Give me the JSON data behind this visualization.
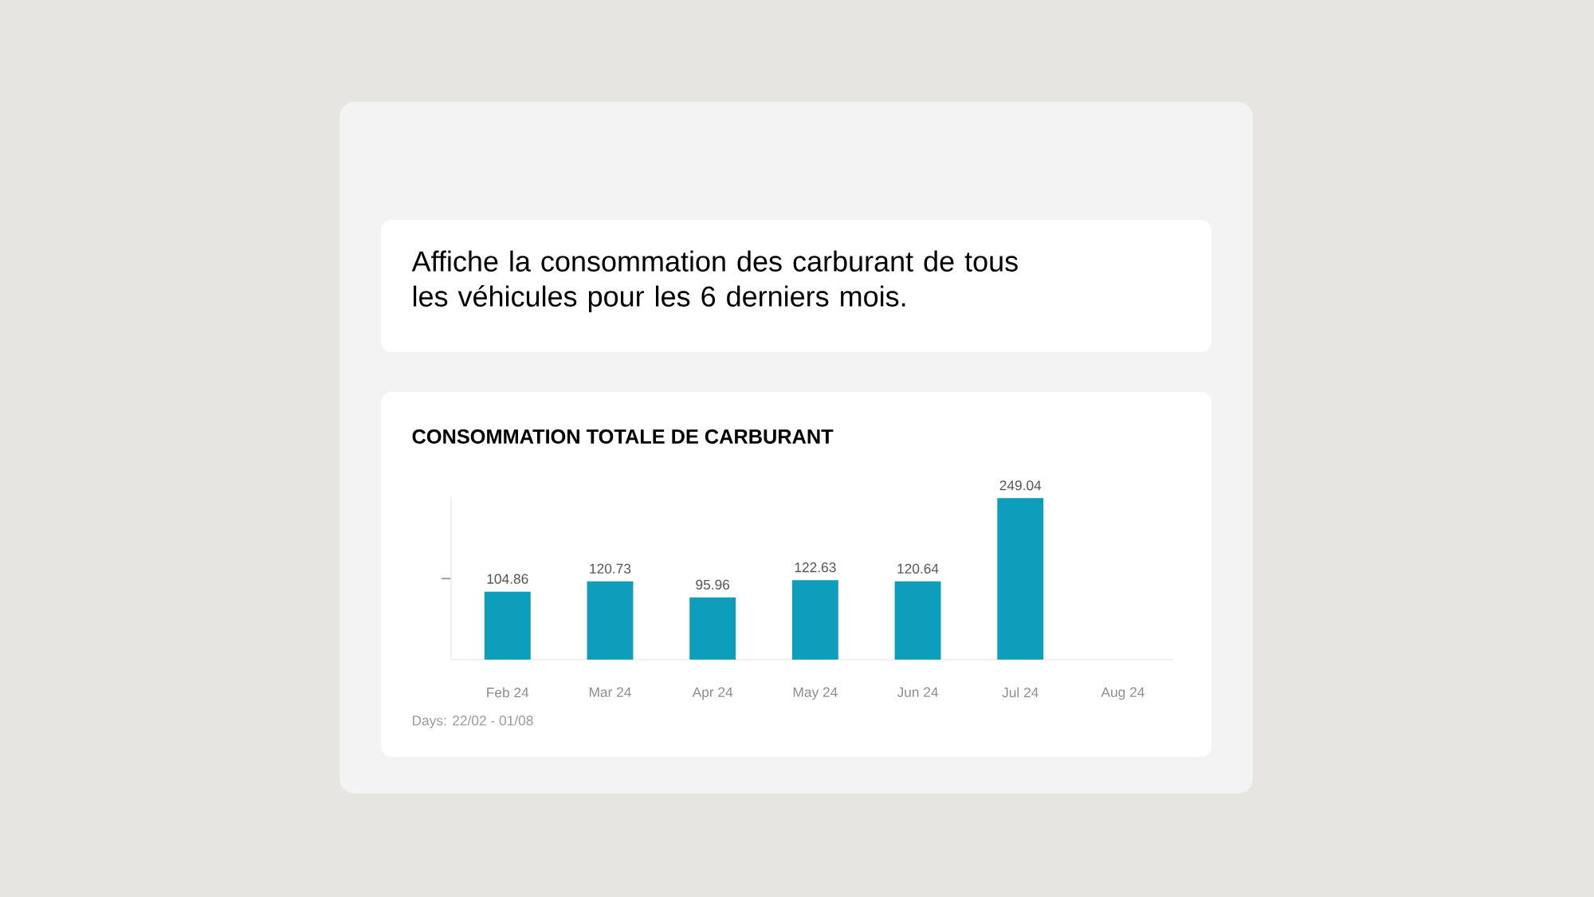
{
  "chart_data": {
    "type": "bar",
    "title": "CONSOMMATION TOTALE DE CARBURANT",
    "subtitle": "Affiche la consommation des carburant de tous les véhicules pour les 6 derniers mois.",
    "categories": [
      "Feb 24",
      "Mar 24",
      "Apr 24",
      "May 24",
      "Jun 24",
      "Jul 24",
      "Aug 24"
    ],
    "values": [
      104.86,
      120.73,
      95.96,
      122.63,
      120.64,
      249.04,
      null
    ],
    "color": "#0f9dbc",
    "data_labels": true,
    "ylim": [
      0,
      250
    ],
    "yticks": [
      {
        "value": 125,
        "label": null
      }
    ],
    "tick_labels": "x",
    "annotations": [
      "Days: 22/02 - 01/08"
    ]
  }
}
